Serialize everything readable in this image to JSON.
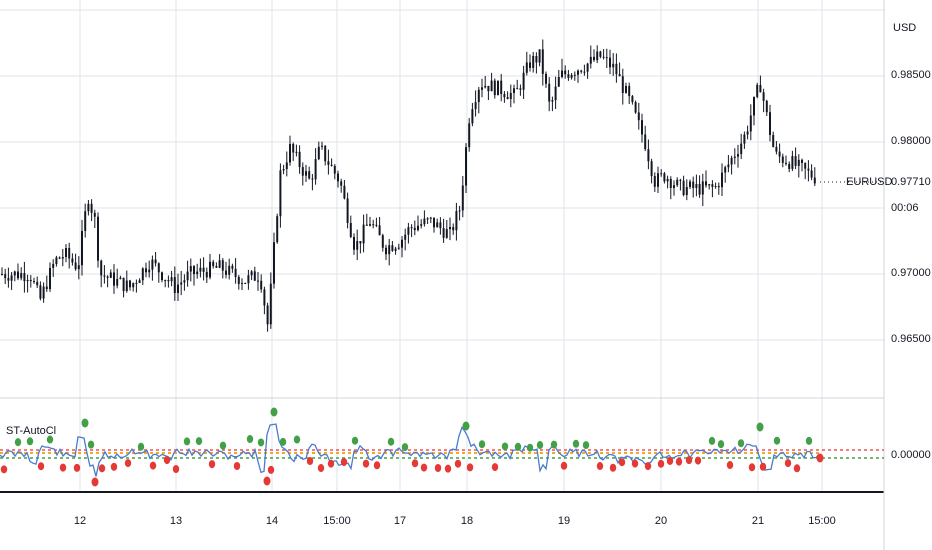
{
  "instrument": {
    "currency_label": "USD",
    "symbol": "EURUSD",
    "last_price": "0.97710",
    "countdown": "00:06"
  },
  "price_axis": {
    "ticks": [
      "0.98500",
      "0.98000",
      "0.97000",
      "0.96500"
    ]
  },
  "indicator": {
    "name": "ST-AutoCl",
    "zero_label": "0.00000"
  },
  "time_axis": {
    "labels": [
      "12",
      "13",
      "14",
      "15:00",
      "17",
      "18",
      "19",
      "20",
      "21",
      "15:00"
    ]
  },
  "colors": {
    "candle": "#131722",
    "grid": "#e0e3eb",
    "osc_line": "#4a7bd1",
    "dot_up": "#43a047",
    "dot_down": "#e53935",
    "signal_dash": "#f9a825",
    "dotted_red": "#ef5350",
    "dotted_green": "#43a047"
  },
  "chart_data": {
    "type": "candlestick",
    "series_name": "EURUSD",
    "y_unit": "USD",
    "ylim": [
      0.962,
      0.99
    ],
    "anchors": [
      [
        0,
        0.97
      ],
      [
        30,
        0.97
      ],
      [
        40,
        0.968
      ],
      [
        55,
        0.971
      ],
      [
        65,
        0.9715
      ],
      [
        78,
        0.9705
      ],
      [
        88,
        0.976
      ],
      [
        95,
        0.974
      ],
      [
        100,
        0.97
      ],
      [
        130,
        0.969
      ],
      [
        150,
        0.971
      ],
      [
        175,
        0.969
      ],
      [
        190,
        0.97
      ],
      [
        220,
        0.9705
      ],
      [
        245,
        0.9695
      ],
      [
        260,
        0.97
      ],
      [
        268,
        0.966
      ],
      [
        272,
        0.97
      ],
      [
        280,
        0.9775
      ],
      [
        290,
        0.9795
      ],
      [
        310,
        0.977
      ],
      [
        320,
        0.9795
      ],
      [
        340,
        0.977
      ],
      [
        355,
        0.972
      ],
      [
        370,
        0.974
      ],
      [
        385,
        0.972
      ],
      [
        400,
        0.9725
      ],
      [
        410,
        0.9735
      ],
      [
        430,
        0.974
      ],
      [
        450,
        0.973
      ],
      [
        460,
        0.975
      ],
      [
        470,
        0.9825
      ],
      [
        480,
        0.9845
      ],
      [
        500,
        0.984
      ],
      [
        515,
        0.9835
      ],
      [
        530,
        0.986
      ],
      [
        540,
        0.9865
      ],
      [
        550,
        0.9825
      ],
      [
        560,
        0.985
      ],
      [
        575,
        0.9855
      ],
      [
        590,
        0.986
      ],
      [
        600,
        0.9865
      ],
      [
        615,
        0.9855
      ],
      [
        630,
        0.983
      ],
      [
        645,
        0.98
      ],
      [
        655,
        0.977
      ],
      [
        665,
        0.9775
      ],
      [
        680,
        0.9765
      ],
      [
        700,
        0.9765
      ],
      [
        715,
        0.9765
      ],
      [
        730,
        0.9785
      ],
      [
        745,
        0.9805
      ],
      [
        760,
        0.9845
      ],
      [
        768,
        0.9815
      ],
      [
        775,
        0.979
      ],
      [
        790,
        0.9785
      ],
      [
        800,
        0.978
      ],
      [
        818,
        0.9772
      ]
    ]
  }
}
